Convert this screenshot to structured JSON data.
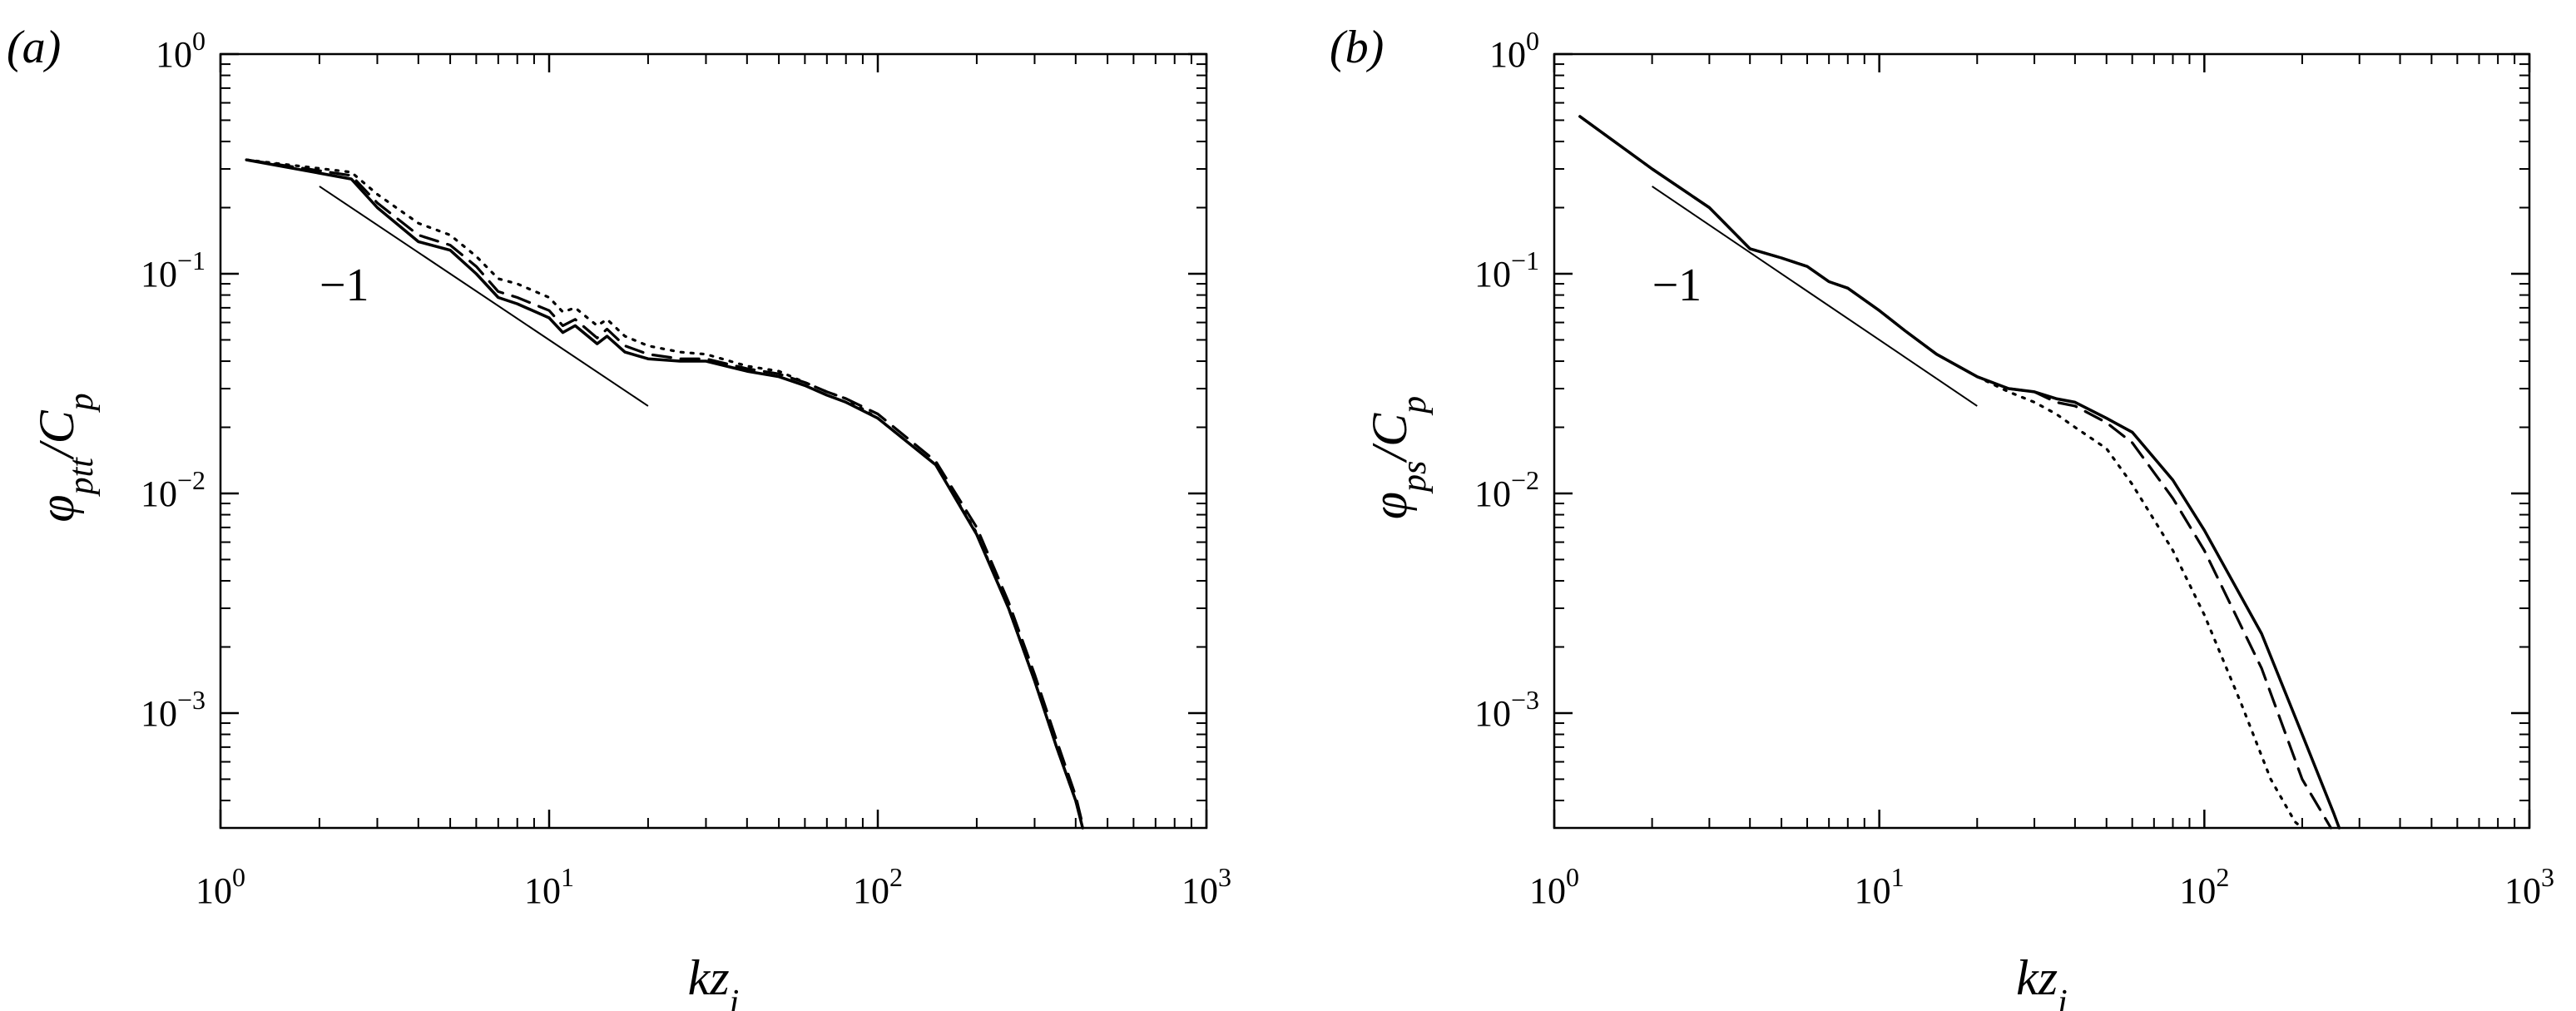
{
  "panels": [
    {
      "label": "(a)",
      "ylabel": "φptt/Cp",
      "xlabel": "kzi"
    },
    {
      "label": "(b)",
      "ylabel": "φps/Cp",
      "xlabel": "kzi"
    }
  ],
  "chart_data": [
    {
      "type": "line",
      "title": "",
      "xscale": "log",
      "yscale": "log",
      "xlim": [
        1,
        1000
      ],
      "ylim": [
        0.0003,
        1
      ],
      "xticks": [
        1,
        10,
        100,
        1000
      ],
      "yticks": [
        1,
        0.1,
        0.01,
        0.001
      ],
      "xtick_labels": [
        "10^0",
        "10^1",
        "10^2",
        "10^3"
      ],
      "ytick_labels": [
        "10^0",
        "10^-1",
        "10^-2",
        "10^-3"
      ],
      "xlabel": "kzi",
      "ylabel": "φptt/Cp",
      "grid": false,
      "reference_line": {
        "x": [
          2,
          20
        ],
        "y": [
          0.25,
          0.025
        ],
        "label": "−1",
        "label_at": [
          2.0,
          0.1
        ]
      },
      "series": [
        {
          "style": "solid",
          "x": [
            1.2,
            2.5,
            3,
            4,
            5,
            6,
            7,
            8,
            10,
            11,
            12,
            14,
            15,
            17,
            20,
            25,
            30,
            40,
            50,
            60,
            70,
            80,
            100,
            150,
            200,
            250,
            300,
            350,
            400,
            420
          ],
          "y": [
            0.33,
            0.27,
            0.2,
            0.14,
            0.128,
            0.1,
            0.078,
            0.073,
            0.063,
            0.054,
            0.058,
            0.048,
            0.052,
            0.044,
            0.041,
            0.04,
            0.04,
            0.036,
            0.034,
            0.031,
            0.028,
            0.026,
            0.022,
            0.0135,
            0.0065,
            0.003,
            0.0014,
            0.0007,
            0.0004,
            0.0003
          ]
        },
        {
          "style": "dashed",
          "x": [
            1.2,
            2.5,
            3,
            4,
            5,
            6,
            7,
            8,
            10,
            11,
            12,
            14,
            15,
            17,
            20,
            25,
            30,
            40,
            50,
            60,
            70,
            80,
            100,
            150,
            200,
            250,
            300,
            350,
            400,
            420
          ],
          "y": [
            0.33,
            0.28,
            0.21,
            0.15,
            0.135,
            0.108,
            0.083,
            0.078,
            0.068,
            0.058,
            0.062,
            0.051,
            0.056,
            0.047,
            0.043,
            0.041,
            0.041,
            0.037,
            0.035,
            0.032,
            0.029,
            0.027,
            0.023,
            0.014,
            0.007,
            0.0032,
            0.0015,
            0.00075,
            0.00042,
            0.00031
          ]
        },
        {
          "style": "dotted",
          "x": [
            1.2,
            2.5,
            3,
            4,
            5,
            6,
            7,
            8,
            10,
            11,
            12,
            14,
            15,
            17,
            20,
            25,
            30,
            40,
            50,
            60,
            70,
            80,
            100,
            150,
            200,
            250,
            300,
            350,
            400,
            420
          ],
          "y": [
            0.33,
            0.29,
            0.23,
            0.17,
            0.15,
            0.12,
            0.095,
            0.09,
            0.078,
            0.067,
            0.07,
            0.058,
            0.062,
            0.052,
            0.047,
            0.044,
            0.043,
            0.038,
            0.036,
            0.032,
            0.029,
            0.027,
            0.022,
            0.0135,
            0.0066,
            0.003,
            0.0014,
            0.0007,
            0.0004,
            0.0003
          ]
        }
      ]
    },
    {
      "type": "line",
      "title": "",
      "xscale": "log",
      "yscale": "log",
      "xlim": [
        1,
        1000
      ],
      "ylim": [
        0.0003,
        1
      ],
      "xticks": [
        1,
        10,
        100,
        1000
      ],
      "yticks": [
        1,
        0.1,
        0.01,
        0.001
      ],
      "xtick_labels": [
        "10^0",
        "10^1",
        "10^2",
        "10^3"
      ],
      "ytick_labels": [
        "10^0",
        "10^-1",
        "10^-2",
        "10^-3"
      ],
      "xlabel": "kzi",
      "ylabel": "φps/Cp",
      "grid": false,
      "reference_line": {
        "x": [
          2,
          20
        ],
        "y": [
          0.25,
          0.025
        ],
        "label": "−1",
        "label_at": [
          2.0,
          0.1
        ]
      },
      "series": [
        {
          "style": "solid",
          "x": [
            1.2,
            2,
            3,
            4,
            5,
            6,
            7,
            8,
            10,
            12,
            15,
            20,
            25,
            30,
            35,
            40,
            50,
            60,
            80,
            100,
            150,
            200,
            250,
            260
          ],
          "y": [
            0.52,
            0.3,
            0.2,
            0.13,
            0.118,
            0.108,
            0.092,
            0.086,
            0.068,
            0.055,
            0.043,
            0.034,
            0.03,
            0.029,
            0.027,
            0.026,
            0.022,
            0.019,
            0.0115,
            0.0068,
            0.0023,
            0.0008,
            0.00035,
            0.0003
          ]
        },
        {
          "style": "dashed",
          "x": [
            1.2,
            2,
            3,
            4,
            5,
            6,
            7,
            8,
            10,
            12,
            15,
            20,
            25,
            30,
            35,
            40,
            50,
            60,
            80,
            100,
            150,
            200,
            245
          ],
          "y": [
            0.52,
            0.3,
            0.2,
            0.13,
            0.118,
            0.108,
            0.092,
            0.086,
            0.068,
            0.055,
            0.043,
            0.034,
            0.03,
            0.029,
            0.026,
            0.025,
            0.021,
            0.017,
            0.0095,
            0.0055,
            0.0016,
            0.0005,
            0.0003
          ]
        },
        {
          "style": "dotted",
          "x": [
            1.2,
            2,
            3,
            4,
            5,
            6,
            7,
            8,
            10,
            12,
            15,
            20,
            25,
            30,
            35,
            40,
            50,
            60,
            80,
            100,
            130,
            160,
            190,
            200
          ],
          "y": [
            0.52,
            0.3,
            0.2,
            0.13,
            0.118,
            0.108,
            0.092,
            0.086,
            0.068,
            0.055,
            0.043,
            0.034,
            0.029,
            0.026,
            0.023,
            0.02,
            0.016,
            0.011,
            0.0055,
            0.0028,
            0.0011,
            0.0005,
            0.00032,
            0.0003
          ]
        }
      ]
    }
  ]
}
